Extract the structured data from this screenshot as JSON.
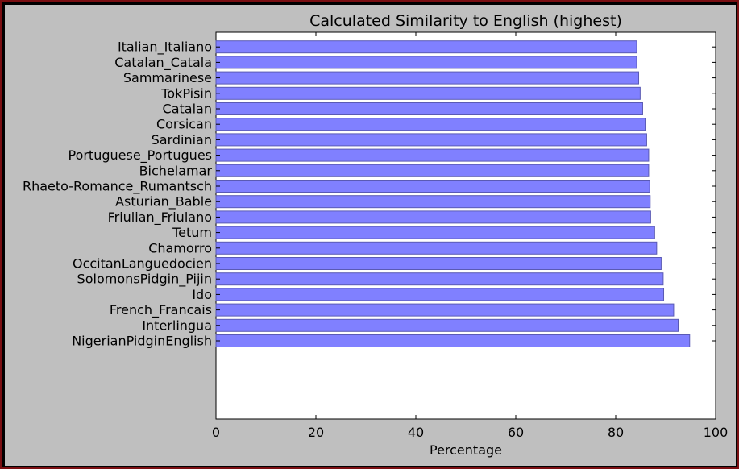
{
  "colors": {
    "figure_background": "#bfbfbf",
    "plot_background": "#ffffff",
    "bar_fill": "#8080ff",
    "bar_edge": "#5a5ab4",
    "window_border": "#7a0f12"
  },
  "chart_data": {
    "type": "bar",
    "orientation": "horizontal",
    "title": "Calculated Similarity to English (highest)",
    "xlabel": "Percentage",
    "ylabel": "",
    "xlim": [
      0,
      100
    ],
    "xticks": [
      0,
      20,
      40,
      60,
      80,
      100
    ],
    "grid": false,
    "categories": [
      "NigerianPidginEnglish",
      "Interlingua",
      "French_Francais",
      "Ido",
      "SolomonsPidgin_Pijin",
      "OccitanLanguedocien",
      "Chamorro",
      "Tetum",
      "Friulian_Friulano",
      "Asturian_Bable",
      "Rhaeto-Romance_Rumantsch",
      "Bichelamar",
      "Portuguese_Portugues",
      "Sardinian",
      "Corsican",
      "Catalan",
      "TokPisin",
      "Sammarinese",
      "Catalan_Catala",
      "Italian_Italiano"
    ],
    "values": [
      94.8,
      92.5,
      91.6,
      89.6,
      89.5,
      89.1,
      88.2,
      87.8,
      87.0,
      86.9,
      86.8,
      86.6,
      86.6,
      86.2,
      85.9,
      85.4,
      84.9,
      84.6,
      84.2,
      84.2
    ]
  }
}
